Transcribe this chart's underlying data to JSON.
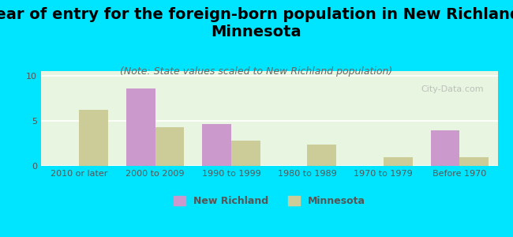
{
  "title": "Year of entry for the foreign-born population in New Richland,\nMinnesota",
  "subtitle": "(Note: State values scaled to New Richland population)",
  "categories": [
    "2010 or later",
    "2000 to 2009",
    "1990 to 1999",
    "1980 to 1989",
    "1970 to 1979",
    "Before 1970"
  ],
  "new_richland": [
    0,
    8.6,
    4.6,
    0,
    0,
    3.9
  ],
  "minnesota": [
    6.2,
    4.3,
    2.8,
    2.4,
    1.0,
    1.0
  ],
  "color_richland": "#cc99cc",
  "color_minnesota": "#cccc99",
  "background_outer": "#00e5ff",
  "background_plot": "#e8f5e0",
  "yticks": [
    0,
    5,
    10
  ],
  "ylim": [
    0,
    10.5
  ],
  "bar_width": 0.38,
  "legend_richland": "New Richland",
  "legend_minnesota": "Minnesota",
  "title_fontsize": 14,
  "subtitle_fontsize": 9,
  "tick_fontsize": 8,
  "legend_fontsize": 9
}
